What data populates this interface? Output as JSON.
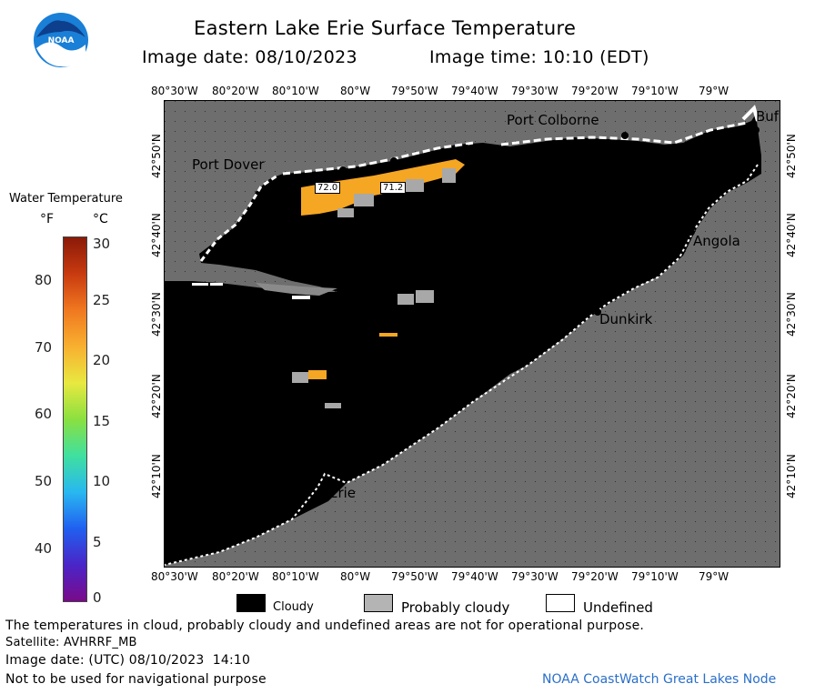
{
  "header": {
    "logo_text": "NOAA",
    "title": "Eastern Lake Erie Surface Temperature",
    "image_date_label": "Image date: 08/10/2023",
    "image_time_label": "Image time: 10:10 (EDT)"
  },
  "axes": {
    "lon_ticks": [
      "80°30'W",
      "80°20'W",
      "80°10'W",
      "80°W",
      "79°50'W",
      "79°40'W",
      "79°30'W",
      "79°20'W",
      "79°10'W",
      "79°W"
    ],
    "lat_ticks": [
      "42°50'N",
      "42°40'N",
      "42°30'N",
      "42°20'N",
      "42°10'N"
    ]
  },
  "places": {
    "port_dover": "Port Dover",
    "port_colborne": "Port Colborne",
    "buffalo": "Buf",
    "angola": "Angola",
    "dunkirk": "Dunkirk",
    "erie": "Erie"
  },
  "temperature_labels": [
    "72.0",
    "71.2"
  ],
  "colorbar": {
    "title": "Water Temperature",
    "unit_f": "°F",
    "unit_c": "°C",
    "f_ticks": [
      "80",
      "70",
      "60",
      "50",
      "40"
    ],
    "c_ticks": [
      "30",
      "25",
      "20",
      "15",
      "10",
      "5",
      "0"
    ],
    "colors": [
      "#7a0a8a",
      "#4a25c8",
      "#2060f0",
      "#29b8f0",
      "#3fe0a0",
      "#8ae040",
      "#e8e840",
      "#f8b030",
      "#f07820",
      "#c83a10",
      "#8a1a08"
    ]
  },
  "legend": {
    "cloudy": "Cloudy",
    "probably_cloudy": "Probably cloudy",
    "undefined": "Undefined",
    "cloudy_color": "#000000",
    "probably_cloudy_color": "#b4b4b4",
    "undefined_color": "#ffffff"
  },
  "footer": {
    "disclaimer": "The temperatures in cloud, probably cloudy and undefined areas are not for operational purpose.",
    "satellite": "Satellite: AVHRRF_MB",
    "utc_date": "Image date: (UTC) 08/10/2023  14:10",
    "nav_warning": "Not to be used for navigational purpose",
    "node": "NOAA CoastWatch Great Lakes Node"
  },
  "map_colors": {
    "land": "#6e6e6e",
    "lake_cloudy": "#000000",
    "warm_water": "#f5a623",
    "probably_cloudy": "#a8a8a8"
  }
}
